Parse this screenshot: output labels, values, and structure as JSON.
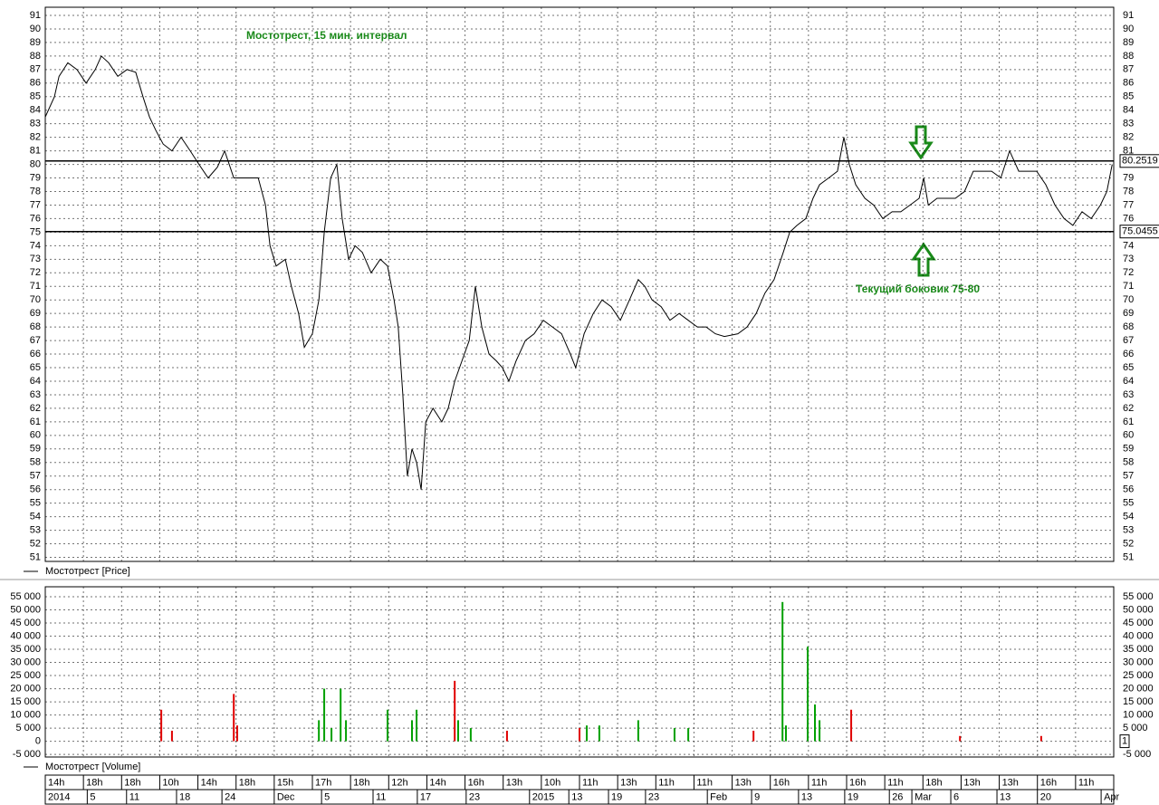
{
  "chart_data": {
    "type": "line",
    "title": "Мостотрест, 15 мин. интервал",
    "annotation": "Текущий боковик 75-80",
    "grid": true,
    "xlim": [
      0,
      28
    ],
    "xticks": [
      {
        "value": 0,
        "label": "14h"
      },
      {
        "value": 1,
        "label": "18h"
      },
      {
        "value": 2,
        "label": "18h"
      },
      {
        "value": 3,
        "label": "10h"
      },
      {
        "value": 4,
        "label": "14h"
      },
      {
        "value": 5,
        "label": "18h"
      },
      {
        "value": 6,
        "label": "15h"
      },
      {
        "value": 7,
        "label": "17h"
      },
      {
        "value": 8,
        "label": "18h"
      },
      {
        "value": 9,
        "label": "12h"
      },
      {
        "value": 10,
        "label": "14h"
      },
      {
        "value": 11,
        "label": "16h"
      },
      {
        "value": 12,
        "label": "13h"
      },
      {
        "value": 13,
        "label": "10h"
      },
      {
        "value": 14,
        "label": "11h"
      },
      {
        "value": 15,
        "label": "13h"
      },
      {
        "value": 16,
        "label": "11h"
      },
      {
        "value": 17,
        "label": "11h"
      },
      {
        "value": 18,
        "label": "13h"
      },
      {
        "value": 19,
        "label": "16h"
      },
      {
        "value": 20,
        "label": "11h"
      },
      {
        "value": 21,
        "label": "16h"
      },
      {
        "value": 22,
        "label": "11h"
      },
      {
        "value": 23,
        "label": "18h"
      },
      {
        "value": 24,
        "label": "13h"
      },
      {
        "value": 25,
        "label": "13h"
      },
      {
        "value": 26,
        "label": "16h"
      },
      {
        "value": 27,
        "label": "11h"
      }
    ],
    "date_ticks": [
      {
        "value": 0,
        "label": "2014"
      },
      {
        "value": 1.1,
        "label": "5"
      },
      {
        "value": 2.13,
        "label": "11"
      },
      {
        "value": 3.44,
        "label": "18"
      },
      {
        "value": 4.63,
        "label": "24"
      },
      {
        "value": 6.0,
        "label": "Dec"
      },
      {
        "value": 7.24,
        "label": "5"
      },
      {
        "value": 8.59,
        "label": "11"
      },
      {
        "value": 9.75,
        "label": "17"
      },
      {
        "value": 11.03,
        "label": "23"
      },
      {
        "value": 12.69,
        "label": "2015"
      },
      {
        "value": 13.72,
        "label": "13"
      },
      {
        "value": 14.76,
        "label": "19"
      },
      {
        "value": 15.73,
        "label": "23"
      },
      {
        "value": 17.35,
        "label": "Feb"
      },
      {
        "value": 18.51,
        "label": "9"
      },
      {
        "value": 19.74,
        "label": "13"
      },
      {
        "value": 20.95,
        "label": "19"
      },
      {
        "value": 22.12,
        "label": "26"
      },
      {
        "value": 22.71,
        "label": "Mar"
      },
      {
        "value": 23.73,
        "label": "6"
      },
      {
        "value": 24.94,
        "label": "13"
      },
      {
        "value": 26.0,
        "label": "20"
      },
      {
        "value": 27.67,
        "label": "Apr"
      }
    ],
    "ylim": [
      50.7,
      91.6
    ],
    "yticks": [
      51,
      52,
      53,
      54,
      55,
      56,
      57,
      58,
      59,
      60,
      61,
      62,
      63,
      64,
      65,
      66,
      67,
      68,
      69,
      70,
      71,
      72,
      73,
      74,
      75,
      76,
      77,
      78,
      79,
      80,
      81,
      82,
      83,
      84,
      85,
      86,
      87,
      88,
      89,
      90,
      91
    ],
    "levels": [
      {
        "value": 80.2519,
        "label": "80.2519"
      },
      {
        "value": 75.0455,
        "label": "75.0455"
      }
    ],
    "series": [
      {
        "name": "Мостотрест [Price]",
        "color": "#000000",
        "x": [
          0,
          0.24,
          0.36,
          0.59,
          0.83,
          1.07,
          1.31,
          1.47,
          1.66,
          1.9,
          2.14,
          2.37,
          2.56,
          2.73,
          2.9,
          3.09,
          3.32,
          3.56,
          3.8,
          4.03,
          4.27,
          4.51,
          4.7,
          4.94,
          5.22,
          5.58,
          5.77,
          5.89,
          6.05,
          6.29,
          6.45,
          6.64,
          6.79,
          7.0,
          7.17,
          7.31,
          7.48,
          7.64,
          7.78,
          7.95,
          8.12,
          8.31,
          8.54,
          8.78,
          8.97,
          9.14,
          9.25,
          9.37,
          9.49,
          9.61,
          9.73,
          9.85,
          9.97,
          10.16,
          10.39,
          10.56,
          10.73,
          10.92,
          11.11,
          11.27,
          11.44,
          11.63,
          11.82,
          11.98,
          12.15,
          12.34,
          12.58,
          12.81,
          13.05,
          13.29,
          13.53,
          13.76,
          13.9,
          14.12,
          14.36,
          14.59,
          14.83,
          15.07,
          15.31,
          15.54,
          15.71,
          15.9,
          16.14,
          16.37,
          16.61,
          16.85,
          17.09,
          17.32,
          17.56,
          17.8,
          18.15,
          18.39,
          18.63,
          18.86,
          19.1,
          19.34,
          19.51,
          19.7,
          19.93,
          20.12,
          20.29,
          20.53,
          20.76,
          20.93,
          21.07,
          21.24,
          21.48,
          21.71,
          21.95,
          22.19,
          22.42,
          22.66,
          22.9,
          23.02,
          23.14,
          23.37,
          23.61,
          23.85,
          24.09,
          24.32,
          24.56,
          24.8,
          25.04,
          25.27,
          25.51,
          25.75,
          25.98,
          26.22,
          26.46,
          26.7,
          26.93,
          27.17,
          27.41,
          27.65,
          27.82,
          27.96
        ],
        "values": [
          83.5,
          85,
          86.5,
          87.5,
          87,
          86,
          87,
          88,
          87.5,
          86.5,
          87,
          86.8,
          85,
          83.5,
          82.5,
          81.5,
          81,
          82,
          81,
          80,
          79,
          79.8,
          81,
          79,
          79,
          79,
          77,
          74,
          72.5,
          73,
          71,
          69,
          66.5,
          67.5,
          70,
          75,
          79,
          80,
          76,
          73,
          74,
          73.5,
          72,
          73,
          72.5,
          70,
          68,
          63,
          57,
          59,
          58,
          56,
          61,
          62,
          61,
          62,
          64,
          65.5,
          67,
          71,
          68,
          66,
          65.5,
          65,
          64,
          65.5,
          67,
          67.5,
          68.5,
          68,
          67.5,
          66,
          65,
          67.5,
          69,
          70,
          69.5,
          68.5,
          70,
          71.5,
          71,
          70,
          69.5,
          68.5,
          69,
          68.5,
          68,
          68,
          67.5,
          67.3,
          67.5,
          68,
          69,
          70.5,
          71.5,
          73.5,
          75,
          75.5,
          76,
          77.5,
          78.5,
          79,
          79.5,
          82,
          80,
          78.5,
          77.5,
          77,
          76,
          76.5,
          76.5,
          77,
          77.5,
          79,
          77,
          77.5,
          77.5,
          77.5,
          78,
          79.5,
          79.5,
          79.5,
          79,
          81,
          79.5,
          79.5,
          79.5,
          78.5,
          77,
          76,
          75.5,
          76.5,
          76,
          77,
          78,
          80
        ]
      }
    ],
    "volume": {
      "type": "bar",
      "name": "Мостотрест [Volume]",
      "last_label": "1",
      "ylim": [
        -6000,
        58800
      ],
      "yticks": [
        {
          "value": -5000,
          "label": "-5 000"
        },
        0,
        {
          "value": 5000,
          "label": "5 000"
        },
        {
          "value": 10000,
          "label": "10 000"
        },
        {
          "value": 15000,
          "label": "15 000"
        },
        {
          "value": 20000,
          "label": "20 000"
        },
        {
          "value": 25000,
          "label": "25 000"
        },
        {
          "value": 30000,
          "label": "30 000"
        },
        {
          "value": 35000,
          "label": "35 000"
        },
        {
          "value": 40000,
          "label": "40 000"
        },
        {
          "value": 45000,
          "label": "45 000"
        },
        {
          "value": 50000,
          "label": "50 000"
        },
        {
          "value": 55000,
          "label": "55 000"
        }
      ],
      "x": [
        3.04,
        3.32,
        4.94,
        5.03,
        7.17,
        7.31,
        7.5,
        7.74,
        7.88,
        8.97,
        9.61,
        9.73,
        10.73,
        10.82,
        11.15,
        12.1,
        14.0,
        14.19,
        14.52,
        15.54,
        16.49,
        16.85,
        18.56,
        19.32,
        19.41,
        19.98,
        20.17,
        20.29,
        21.12,
        23.97,
        26.1
      ],
      "values": [
        12000,
        4000,
        18000,
        6000,
        8000,
        20000,
        5000,
        20000,
        8000,
        12000,
        8000,
        12000,
        23000,
        8000,
        5000,
        4000,
        5000,
        6000,
        6000,
        8000,
        5000,
        5000,
        4000,
        53000,
        6000,
        36000,
        14000,
        8000,
        12000,
        2000,
        2000
      ],
      "colors": [
        "#e00000",
        "#e00000",
        "#e00000",
        "#e00000",
        "#00a000",
        "#00a000",
        "#00a000",
        "#00a000",
        "#00a000",
        "#00a000",
        "#00a000",
        "#00a000",
        "#e00000",
        "#00a000",
        "#00a000",
        "#e00000",
        "#e00000",
        "#00a000",
        "#00a000",
        "#00a000",
        "#00a000",
        "#00a000",
        "#e00000",
        "#00a000",
        "#00a000",
        "#00a000",
        "#00a000",
        "#00a000",
        "#e00000",
        "#e00000",
        "#e00000"
      ]
    }
  }
}
